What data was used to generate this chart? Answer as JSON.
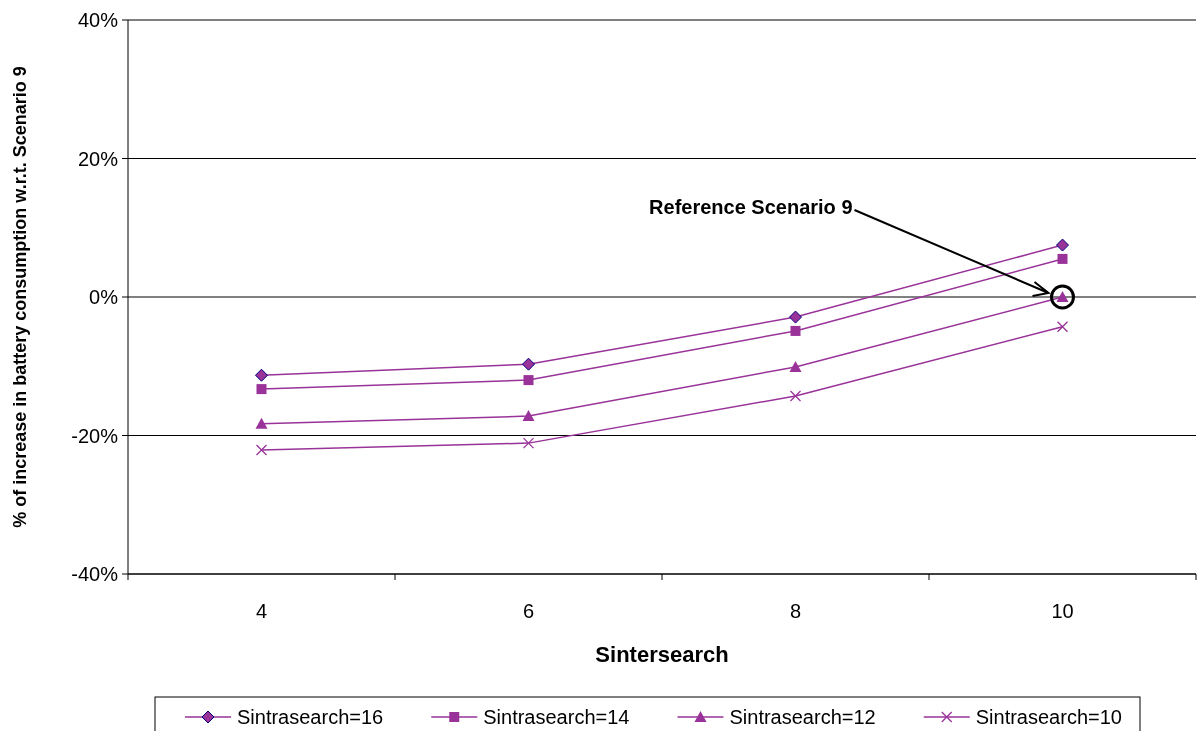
{
  "chart_data": {
    "type": "line",
    "xlabel": "Sintersearch",
    "ylabel": "% of increase  in battery consumption  w.r.t. Scenario 9",
    "categories": [
      "4",
      "6",
      "8",
      "10"
    ],
    "series": [
      {
        "name": "Sintrasearch=16",
        "color": "#993399",
        "marker": "diamond",
        "values": [
          -11.3,
          -9.7,
          -2.9,
          7.5
        ]
      },
      {
        "name": "Sintrasearch=14",
        "color": "#993399",
        "marker": "square",
        "values": [
          -13.3,
          -12.0,
          -4.9,
          5.5
        ]
      },
      {
        "name": "Sintrasearch=12",
        "color": "#993399",
        "marker": "triangle",
        "values": [
          -18.3,
          -17.2,
          -10.1,
          0
        ]
      },
      {
        "name": "Sintrasearch=10",
        "color": "#993399",
        "marker": "cross",
        "values": [
          -22.1,
          -21.1,
          -14.3,
          -4.3
        ]
      }
    ],
    "ylim": [
      -40,
      40
    ],
    "yticks": [
      {
        "value": -40,
        "label": "-40%"
      },
      {
        "value": -20,
        "label": "-20%"
      },
      {
        "value": 0,
        "label": "0%"
      },
      {
        "value": 20,
        "label": "20%"
      },
      {
        "value": 40,
        "label": "40%"
      }
    ],
    "grid": "y",
    "legend": "bottom",
    "annotations": [
      "Reference Scenario 9"
    ]
  }
}
